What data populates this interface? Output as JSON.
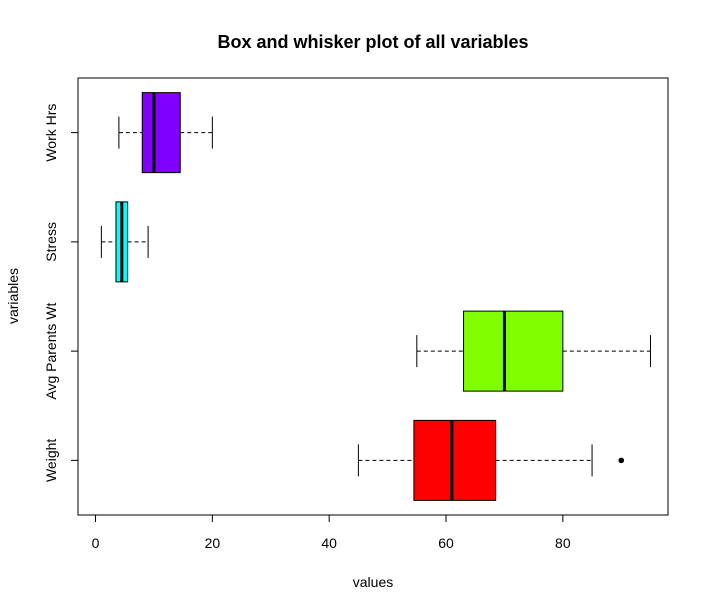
{
  "chart_data": {
    "type": "boxplot",
    "orientation": "horizontal",
    "title": "Box and whisker plot of all variables",
    "xlabel": "values",
    "ylabel": "variables",
    "xlim": [
      -3,
      98
    ],
    "xticks": [
      0,
      20,
      40,
      60,
      80
    ],
    "grid": false,
    "series": [
      {
        "name": "Weight",
        "min": 45,
        "q1": 54.5,
        "median": 61,
        "q3": 68.5,
        "max": 85,
        "outliers": [
          90
        ],
        "color": "#FF0000"
      },
      {
        "name": "Avg Parents Wt",
        "min": 55,
        "q1": 63,
        "median": 70,
        "q3": 80,
        "max": 95,
        "outliers": [],
        "color": "#80FF00"
      },
      {
        "name": "Stress",
        "min": 1,
        "q1": 3.5,
        "median": 4.5,
        "q3": 5.5,
        "max": 9,
        "outliers": [],
        "color": "#00FFFF"
      },
      {
        "name": "Work Hrs",
        "min": 4,
        "q1": 8,
        "median": 10,
        "q3": 14.5,
        "max": 20,
        "outliers": [],
        "color": "#8000FF"
      }
    ]
  }
}
